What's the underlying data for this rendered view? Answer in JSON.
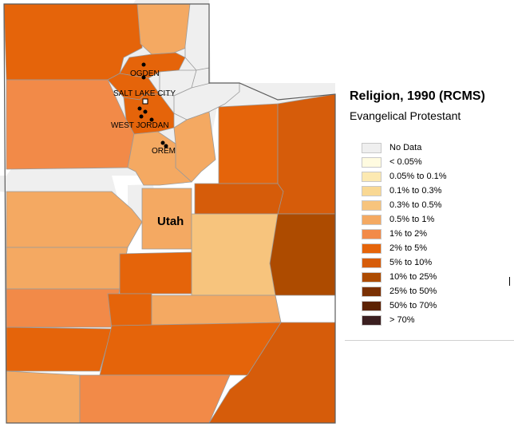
{
  "legend": {
    "title": "Religion, 1990 (RCMS)",
    "subtitle": "Evangelical Protestant",
    "items": [
      {
        "label": "No Data",
        "color": "#efefef"
      },
      {
        "label": "< 0.05%",
        "color": "#fffbe0"
      },
      {
        "label": "0.05% to 0.1%",
        "color": "#fce9b1"
      },
      {
        "label": "0.1% to 0.3%",
        "color": "#f9d893"
      },
      {
        "label": "0.3% to 0.5%",
        "color": "#f7c47d"
      },
      {
        "label": "0.5% to 1%",
        "color": "#f4a962"
      },
      {
        "label": "1% to 2%",
        "color": "#f28a48"
      },
      {
        "label": "2% to 5%",
        "color": "#e5640a"
      },
      {
        "label": "5% to 10%",
        "color": "#d65c0a"
      },
      {
        "label": "10% to 25%",
        "color": "#ad4b00"
      },
      {
        "label": "25% to 50%",
        "color": "#7a3003"
      },
      {
        "label": "50% to 70%",
        "color": "#5c2203"
      },
      {
        "label": "> 70%",
        "color": "#3b1f20"
      }
    ]
  },
  "map": {
    "state_label": "Utah",
    "cities": [
      "OGDEN",
      "SALT LAKE CITY",
      "WEST JORDAN",
      "OREM"
    ]
  }
}
